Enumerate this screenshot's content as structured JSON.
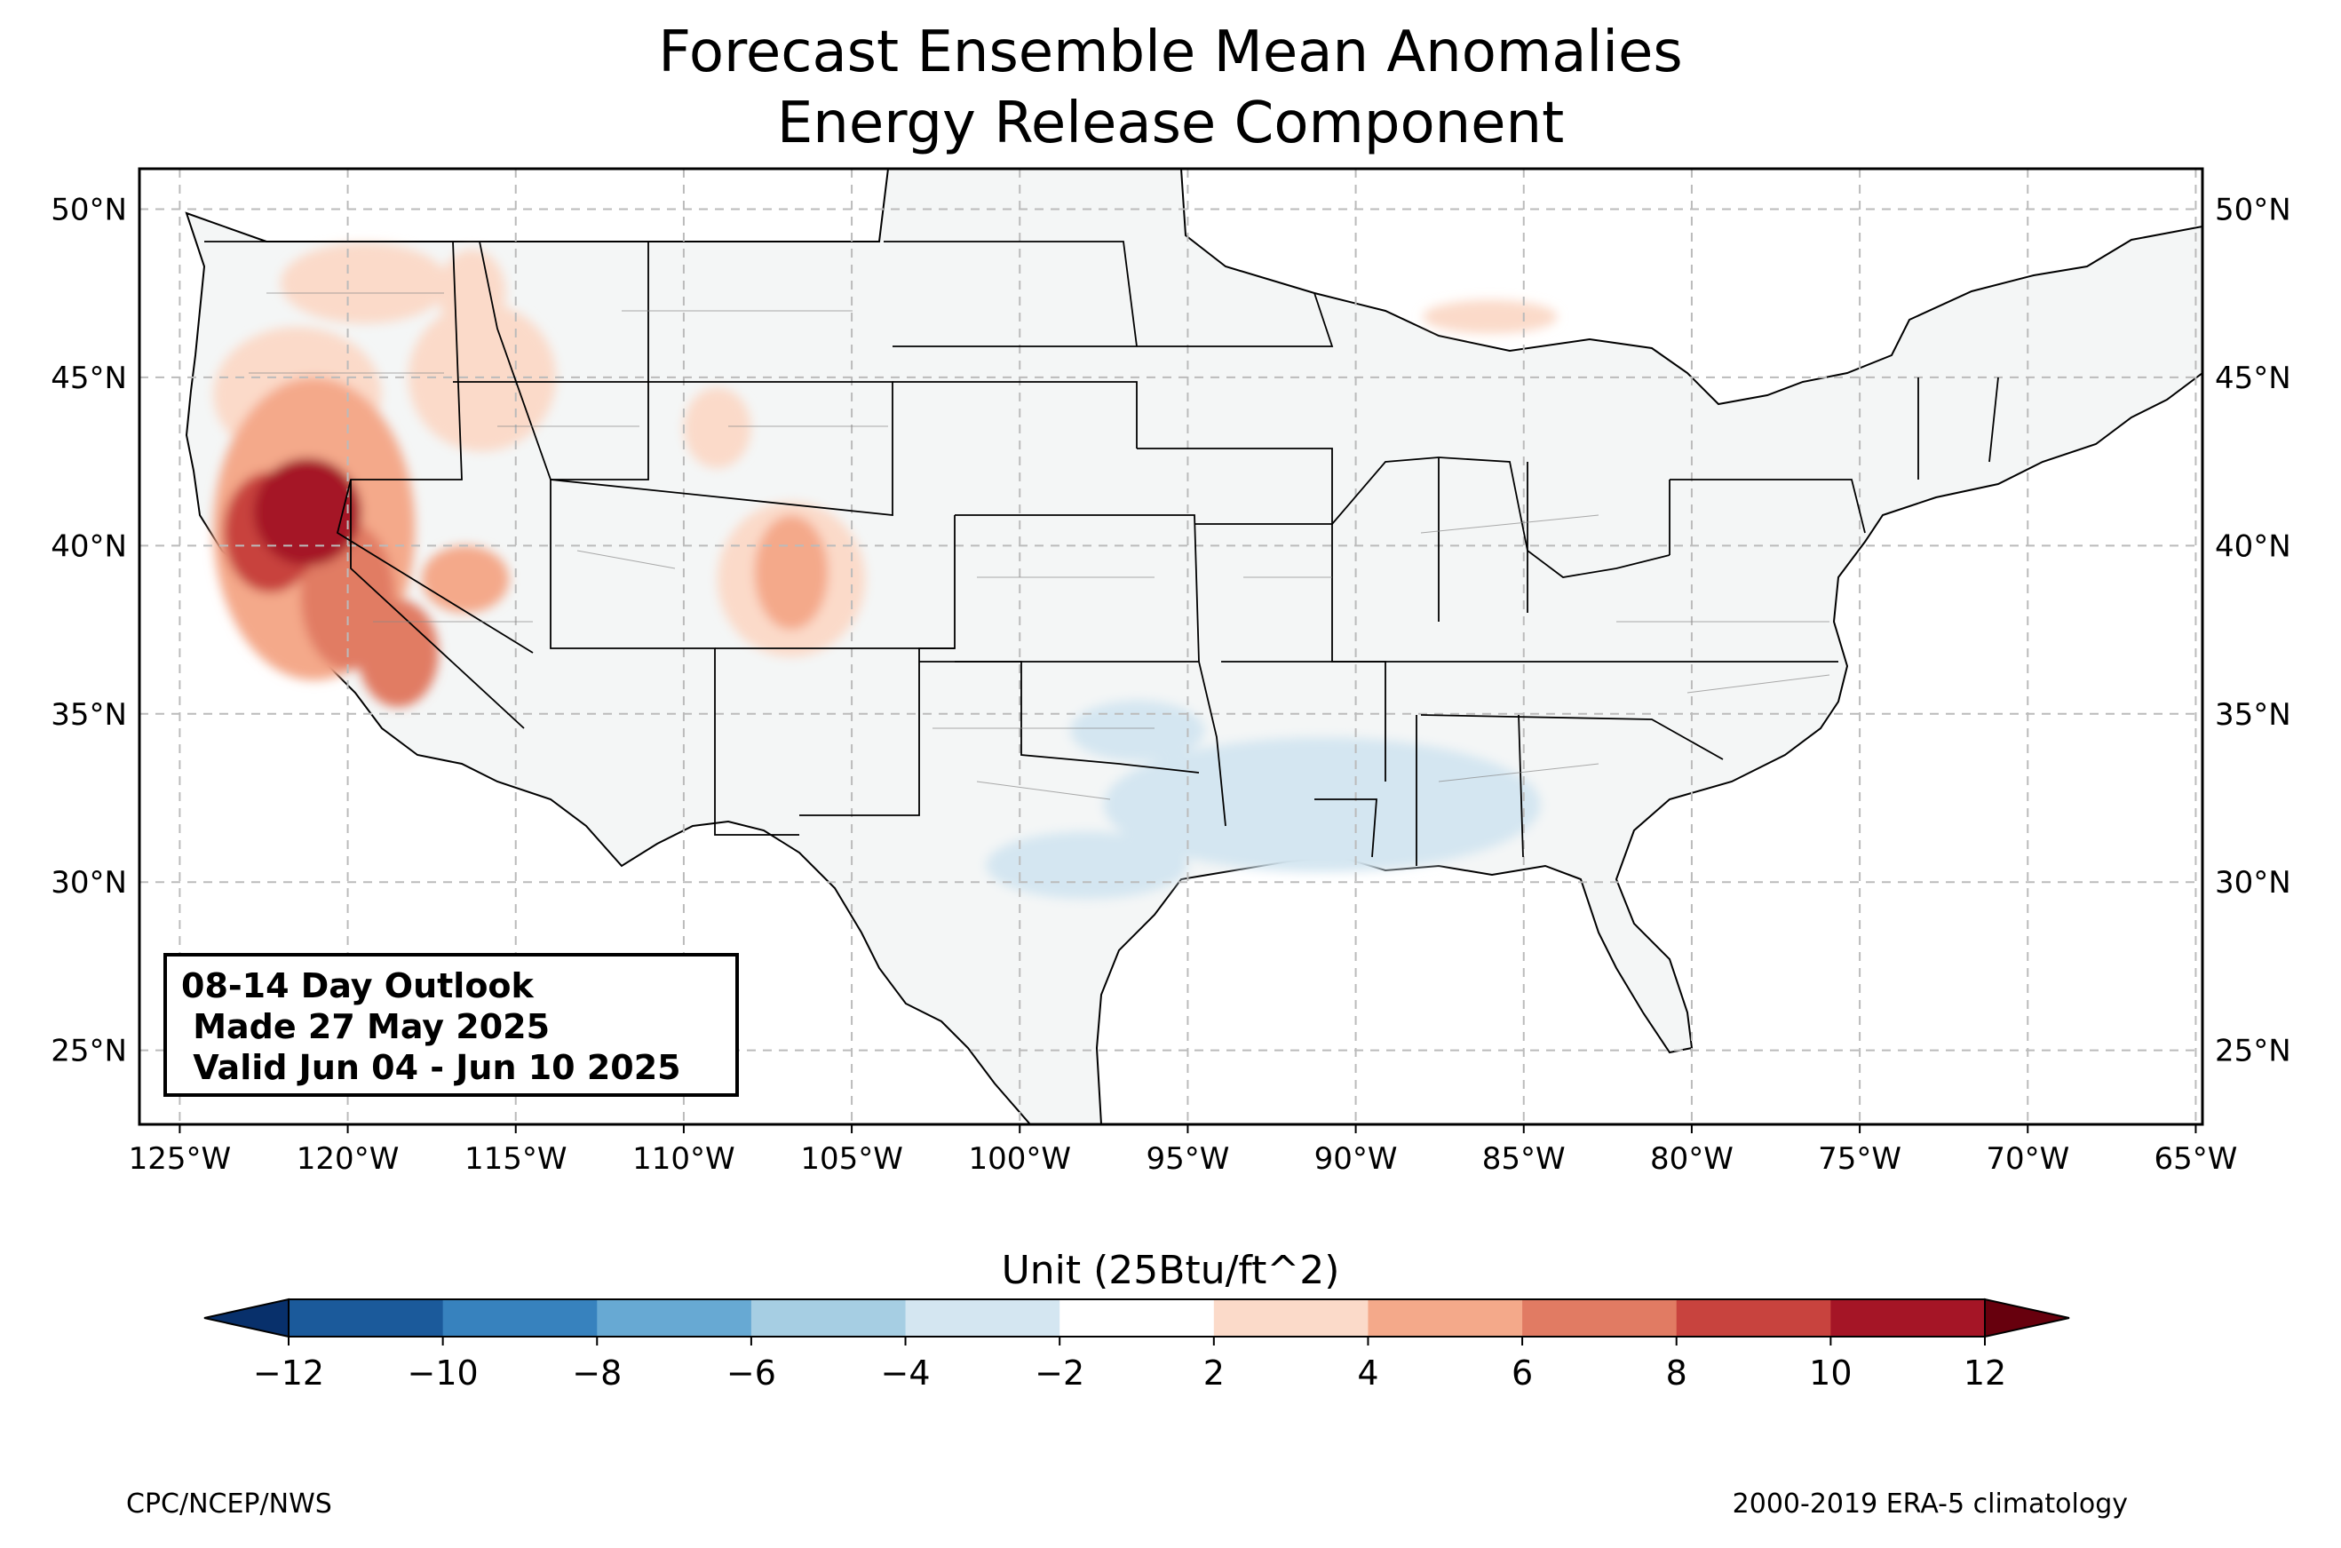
{
  "title": {
    "line1": "Forecast Ensemble Mean Anomalies",
    "line2": "Energy Release Component"
  },
  "map": {
    "extent_lon": [
      -126.2,
      -64.8
    ],
    "extent_lat": [
      22.8,
      51.2
    ],
    "lon_ticks": [
      {
        "value": -125,
        "label": "125°W"
      },
      {
        "value": -120,
        "label": "120°W"
      },
      {
        "value": -115,
        "label": "115°W"
      },
      {
        "value": -110,
        "label": "110°W"
      },
      {
        "value": -105,
        "label": "105°W"
      },
      {
        "value": -100,
        "label": "100°W"
      },
      {
        "value": -95,
        "label": "95°W"
      },
      {
        "value": -90,
        "label": "90°W"
      },
      {
        "value": -85,
        "label": "85°W"
      },
      {
        "value": -80,
        "label": "80°W"
      },
      {
        "value": -75,
        "label": "75°W"
      },
      {
        "value": -70,
        "label": "70°W"
      },
      {
        "value": -65,
        "label": "65°W"
      }
    ],
    "lat_ticks": [
      {
        "value": 50,
        "label": "50°N"
      },
      {
        "value": 45,
        "label": "45°N"
      },
      {
        "value": 40,
        "label": "40°N"
      },
      {
        "value": 35,
        "label": "35°N"
      },
      {
        "value": 30,
        "label": "30°N"
      },
      {
        "value": 25,
        "label": "25°N"
      }
    ],
    "gridlines": true,
    "land_color": "#f4f6f6",
    "anomaly_regions": [
      {
        "name": "california-nevada-core",
        "lon": -121.2,
        "lat": 41.0,
        "rx": 1.6,
        "ry": 1.6,
        "value": 10
      },
      {
        "name": "northern-california",
        "lon": -122.3,
        "lat": 40.4,
        "rx": 1.4,
        "ry": 1.8,
        "value": 9
      },
      {
        "name": "sierra-nevada",
        "lon": -120.0,
        "lat": 38.5,
        "rx": 1.4,
        "ry": 2.2,
        "value": 7
      },
      {
        "name": "west-coast-belt",
        "lon": -121.0,
        "lat": 40.5,
        "rx": 3.0,
        "ry": 4.5,
        "value": 4
      },
      {
        "name": "oregon-interior",
        "lon": -121.5,
        "lat": 44.5,
        "rx": 2.5,
        "ry": 2.0,
        "value": 3
      },
      {
        "name": "southern-sierra",
        "lon": -118.5,
        "lat": 36.8,
        "rx": 1.2,
        "ry": 1.6,
        "value": 6
      },
      {
        "name": "washington",
        "lon": -119.5,
        "lat": 47.8,
        "rx": 2.5,
        "ry": 1.2,
        "value": 3
      },
      {
        "name": "idaho-central",
        "lon": -116.0,
        "lat": 45.0,
        "rx": 2.2,
        "ry": 2.2,
        "value": 3
      },
      {
        "name": "idaho-north",
        "lon": -116.3,
        "lat": 47.5,
        "rx": 1.0,
        "ry": 1.3,
        "value": 3
      },
      {
        "name": "nevada-central",
        "lon": -116.5,
        "lat": 39.0,
        "rx": 1.3,
        "ry": 1.0,
        "value": 5
      },
      {
        "name": "colorado-west",
        "lon": -106.8,
        "lat": 39.2,
        "rx": 1.1,
        "ry": 1.7,
        "value": 5
      },
      {
        "name": "colorado-belt",
        "lon": -106.8,
        "lat": 39.0,
        "rx": 2.2,
        "ry": 2.3,
        "value": 3
      },
      {
        "name": "wyoming-west",
        "lon": -109.0,
        "lat": 43.5,
        "rx": 1.0,
        "ry": 1.2,
        "value": 3
      },
      {
        "name": "lower-mississippi",
        "lon": -89.0,
        "lat": 32.0,
        "rx": 3.0,
        "ry": 1.3,
        "value": -4
      },
      {
        "name": "gulf-coast-wide",
        "lon": -91.0,
        "lat": 32.3,
        "rx": 6.5,
        "ry": 2.0,
        "value": -3
      },
      {
        "name": "texas-south",
        "lon": -98.0,
        "lat": 30.5,
        "rx": 3.0,
        "ry": 1.0,
        "value": -3
      },
      {
        "name": "oklahoma-south",
        "lon": -96.5,
        "lat": 34.5,
        "rx": 2.0,
        "ry": 0.9,
        "value": -3
      },
      {
        "name": "michigan-upper",
        "lon": -86.0,
        "lat": 46.8,
        "rx": 2.0,
        "ry": 0.5,
        "value": 3
      }
    ]
  },
  "outlook": {
    "line1": "08-14 Day Outlook",
    "line2": " Made 27 May 2025",
    "line3": " Valid Jun 04 - Jun 10 2025"
  },
  "colorbar": {
    "label": "Unit (25Btu/ft^2)",
    "levels": [
      -12,
      -10,
      -8,
      -6,
      -4,
      -2,
      2,
      4,
      6,
      8,
      10,
      12
    ],
    "tick_labels": [
      "−12",
      "−10",
      "−8",
      "−6",
      "−4",
      "−2",
      "2",
      "4",
      "6",
      "8",
      "10",
      "12"
    ],
    "colors": [
      "#1b5a9b",
      "#3782be",
      "#67a9d3",
      "#a6cee3",
      "#d4e6f1",
      "#ffffff",
      "#fbdac9",
      "#f4a98a",
      "#e17b63",
      "#c8433e",
      "#a51526"
    ],
    "extend_low_color": "#08306b",
    "extend_high_color": "#67000d"
  },
  "footer": {
    "left": "CPC/NCEP/NWS",
    "right": "2000-2019 ERA-5 climatology"
  }
}
